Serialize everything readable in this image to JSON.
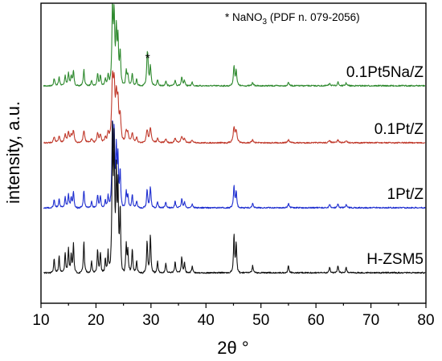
{
  "chart_data": {
    "type": "line",
    "xlabel": "2θ °",
    "ylabel": "intensity, a.u.",
    "xlim": [
      10,
      80
    ],
    "xticks": [
      "10",
      "20",
      "30",
      "40",
      "50",
      "60",
      "70",
      "80"
    ],
    "y_ticks_shown": false,
    "grid": false,
    "annotation": {
      "text_prefix": "* NaNO",
      "text_subscript": "3",
      "text_suffix": " (PDF n. 079-2056)"
    },
    "marker": {
      "text": "*",
      "x": 29.4
    },
    "peak_positions_2theta": [
      12.4,
      13.3,
      14.4,
      15.0,
      15.5,
      15.9,
      17.8,
      19.2,
      20.3,
      20.8,
      21.7,
      22.2,
      23.0,
      23.3,
      23.7,
      24.0,
      24.4,
      25.5,
      25.8,
      26.6,
      27.4,
      29.3,
      29.9,
      31.2,
      32.7,
      34.4,
      35.6,
      36.1,
      37.5,
      45.1,
      45.5,
      48.5,
      55.0,
      62.5,
      64.0,
      65.5
    ],
    "peak_intensities": [
      0.1,
      0.12,
      0.14,
      0.17,
      0.12,
      0.2,
      0.22,
      0.08,
      0.16,
      0.14,
      0.1,
      0.16,
      1.0,
      0.86,
      0.66,
      0.58,
      0.44,
      0.2,
      0.15,
      0.17,
      0.09,
      0.22,
      0.26,
      0.08,
      0.07,
      0.08,
      0.11,
      0.07,
      0.05,
      0.26,
      0.2,
      0.05,
      0.05,
      0.04,
      0.05,
      0.04
    ],
    "series": [
      {
        "name": "0.1Pt5Na/Z",
        "color": "#2f8a2f",
        "nano3_peak": 0.3
      },
      {
        "name": "0.1Pt/Z",
        "color": "#c0392b",
        "nano3_peak": 0
      },
      {
        "name": "1Pt/Z",
        "color": "#1f2fd0",
        "nano3_peak": 0
      },
      {
        "name": "H-ZSM5",
        "color": "#111111",
        "nano3_peak": 0
      }
    ]
  }
}
